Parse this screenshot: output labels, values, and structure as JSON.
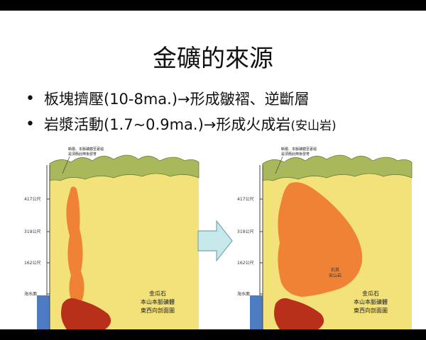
{
  "slide": {
    "title": "金礦的來源",
    "bullets": [
      {
        "text": "板塊擠壓(10-8ma.)",
        "arrow": "→",
        "tail": "形成皺褶、逆斷層",
        "small": ""
      },
      {
        "text": "岩漿活動(1.7~0.9ma.)",
        "arrow": "→",
        "tail": "形成火成岩",
        "small": "(安山岩)"
      }
    ]
  },
  "diagram_left": {
    "note_line1": "斷層、本脈礦體至荖堀",
    "note_line2": "是須衝此倒後發育",
    "depths": [
      "417公尺",
      "319公尺",
      "162公尺",
      "海水面"
    ],
    "caption": [
      "金瓜石",
      "本山本脈礦體",
      "東西向剖面圖"
    ]
  },
  "diagram_right": {
    "note_line1": "斷層、本脈礦體至荖堀",
    "note_line2": "是須衝此倒後發育",
    "depths": [
      "417公尺",
      "319公尺",
      "162公尺",
      "海水面"
    ],
    "caption": [
      "金瓜石",
      "本山本脈礦體",
      "東西向剖面圖"
    ],
    "inner_label": [
      "石英",
      "安山岩"
    ]
  },
  "colors": {
    "ground": "#f3e27a",
    "hills": "#a9b85a",
    "magma": "#f0782e",
    "deep": "#b8301a",
    "sea": "#4d7cc2",
    "arrow_fill": "#c6e8ea",
    "arrow_stroke": "#7aa6b0"
  }
}
